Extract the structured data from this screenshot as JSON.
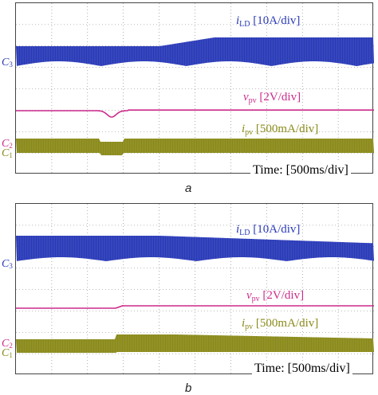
{
  "colors": {
    "ild": "#2a3ab8",
    "vpv": "#cc2a8a",
    "ipv": "#8a8a1a",
    "grid": "#7a7a7a"
  },
  "panels": [
    {
      "caption": "a",
      "ild": {
        "symbol": "i",
        "sub": "LD",
        "scale": "[10A/div]"
      },
      "vpv": {
        "symbol": "v",
        "sub": "pv",
        "scale": "[2V/div]"
      },
      "ipv": {
        "symbol": "i",
        "sub": "pv",
        "scale": "[500mA/div]"
      },
      "time": "Time: [500ms/div]",
      "markers": {
        "c3": "C",
        "c3sub": "3",
        "c2": "C",
        "c2sub": "2",
        "c1": "C",
        "c1sub": "1"
      }
    },
    {
      "caption": "b",
      "ild": {
        "symbol": "i",
        "sub": "LD",
        "scale": "[10A/div]"
      },
      "vpv": {
        "symbol": "v",
        "sub": "pv",
        "scale": "[2V/div]"
      },
      "ipv": {
        "symbol": "i",
        "sub": "pv",
        "scale": "[500mA/div]"
      },
      "time": "Time: [500ms/div]",
      "markers": {
        "c3": "C",
        "c3sub": "3",
        "c2": "C",
        "c2sub": "2",
        "c1": "C",
        "c1sub": "1"
      }
    }
  ]
}
